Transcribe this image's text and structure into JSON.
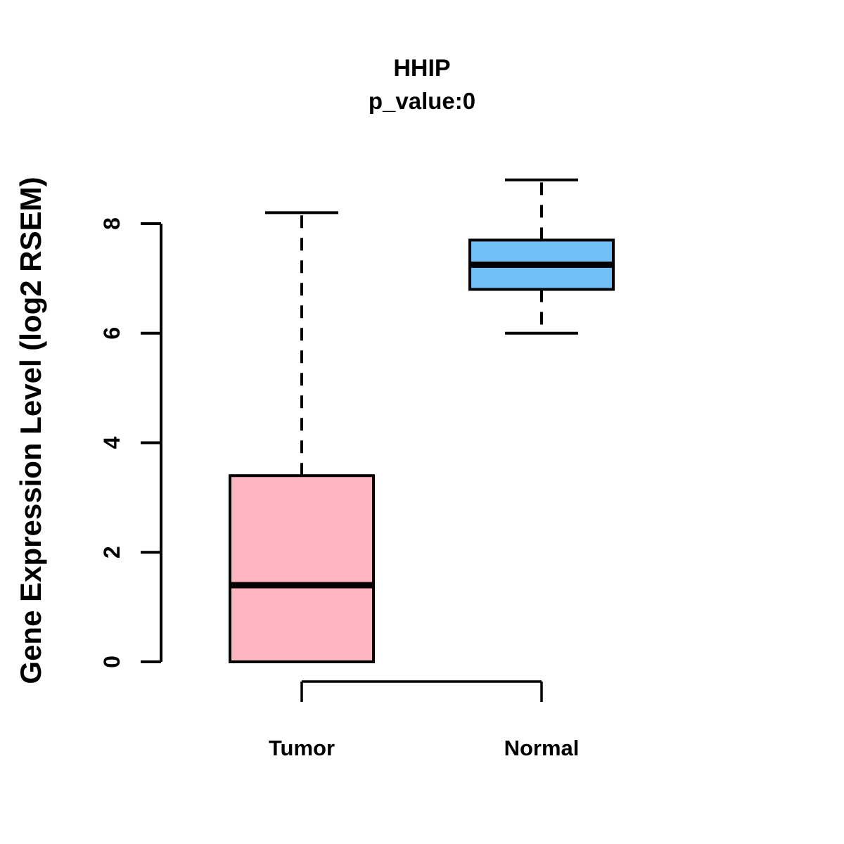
{
  "chart_data": {
    "type": "boxplot",
    "title": "HHIP",
    "subtitle": "p_value:0",
    "ylabel": "Gene Expression Level (log2 RSEM)",
    "xlabel": "",
    "categories": [
      "Tumor",
      "Normal"
    ],
    "yticks": [
      0,
      2,
      4,
      6,
      8
    ],
    "ylim": [
      0,
      9
    ],
    "grid": false,
    "legend": "none",
    "colors": {
      "tumor_fill": "#FFB6C1",
      "normal_fill": "#70BFF7",
      "line": "#000000",
      "background": "#FFFFFF"
    },
    "series": [
      {
        "name": "Tumor",
        "fill_color": "#FFB6C1",
        "min": 0.0,
        "q1": 0.0,
        "median": 1.4,
        "q3": 3.4,
        "max": 8.2
      },
      {
        "name": "Normal",
        "fill_color": "#70BFF7",
        "min": 6.0,
        "q1": 6.8,
        "median": 7.25,
        "q3": 7.7,
        "max": 8.8
      }
    ]
  }
}
